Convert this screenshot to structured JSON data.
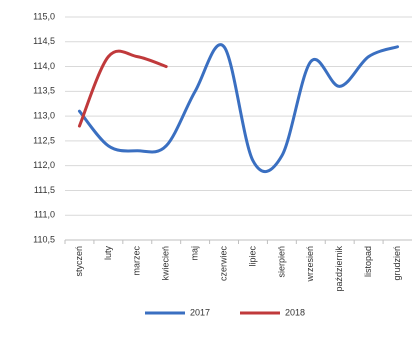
{
  "chart_data": {
    "type": "line",
    "categories": [
      "styczeń",
      "luty",
      "marzec",
      "kwiecień",
      "maj",
      "czerwiec",
      "lipiec",
      "sierpień",
      "wrzesień",
      "październik",
      "listopad",
      "grudzień"
    ],
    "series": [
      {
        "name": "2017",
        "color": "#3a6fc1",
        "values": [
          113.1,
          112.4,
          112.3,
          112.4,
          113.5,
          114.4,
          112.1,
          112.2,
          114.1,
          113.6,
          114.2,
          114.4
        ]
      },
      {
        "name": "2018",
        "color": "#c0393b",
        "values": [
          112.8,
          114.2,
          114.2,
          114.0,
          null,
          null,
          null,
          null,
          null,
          null,
          null,
          null
        ]
      }
    ],
    "ylim": [
      110.5,
      115.0
    ],
    "yticks": [
      {
        "value": 110.5,
        "label": "110,5"
      },
      {
        "value": 111,
        "label": "111,0"
      },
      {
        "value": 111.5,
        "label": "111,5"
      },
      {
        "value": 112,
        "label": "112,0"
      },
      {
        "value": 112.5,
        "label": "112,5"
      },
      {
        "value": 113,
        "label": "113,0"
      },
      {
        "value": 113.5,
        "label": "113,5"
      },
      {
        "value": 114,
        "label": "114,0"
      },
      {
        "value": 114.5,
        "label": "114,5"
      },
      {
        "value": 115,
        "label": "115,0"
      }
    ],
    "grid": true,
    "legend": "bottom"
  }
}
